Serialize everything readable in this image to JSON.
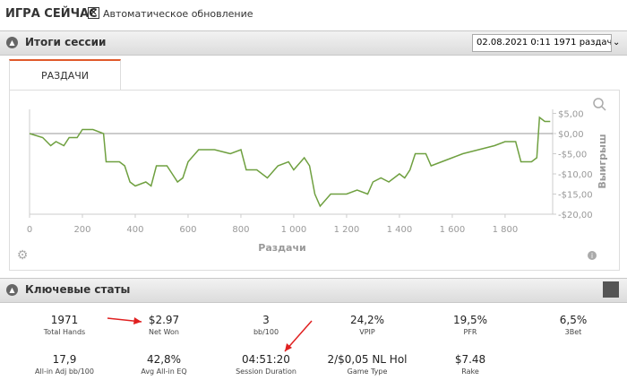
{
  "header": {
    "title": "ИГРА СЕЙЧАС",
    "auto_update": "Автоматическое обновление"
  },
  "session": {
    "title": "Итоги сессии",
    "dropdown": "02.08.2021 0:11 1971 раздач)",
    "tab": "РАЗДАЧИ"
  },
  "chart_data": {
    "type": "line",
    "x_label": "Раздачи",
    "y_label": "Выигрыш",
    "color": "#6fa040",
    "x": [
      0,
      50,
      80,
      100,
      130,
      150,
      180,
      200,
      240,
      280,
      290,
      340,
      360,
      380,
      400,
      440,
      460,
      480,
      520,
      540,
      560,
      580,
      600,
      640,
      700,
      760,
      800,
      820,
      860,
      900,
      940,
      980,
      1000,
      1040,
      1060,
      1080,
      1100,
      1140,
      1200,
      1240,
      1280,
      1300,
      1330,
      1360,
      1400,
      1420,
      1440,
      1460,
      1500,
      1520,
      1560,
      1600,
      1640,
      1700,
      1760,
      1800,
      1840,
      1860,
      1900,
      1920,
      1930,
      1950,
      1971
    ],
    "values": [
      0,
      -1,
      -3,
      -2,
      -3,
      -1,
      -1,
      1,
      1,
      0,
      -7,
      -7,
      -8,
      -12,
      -13,
      -12,
      -13,
      -8,
      -8,
      -10,
      -12,
      -11,
      -7,
      -4,
      -4,
      -5,
      -4,
      -9,
      -9,
      -11,
      -8,
      -7,
      -9,
      -6,
      -8,
      -15,
      -18,
      -15,
      -15,
      -14,
      -15,
      -12,
      -11,
      -12,
      -10,
      -11,
      -9,
      -5,
      -5,
      -8,
      -7,
      -6,
      -5,
      -4,
      -3,
      -2,
      -2,
      -7,
      -7,
      -6,
      4,
      3,
      3
    ],
    "xlim": [
      0,
      1980
    ],
    "ylim": [
      -20,
      6
    ],
    "xticks": [
      0,
      200,
      400,
      600,
      800,
      {
        "value": 1000,
        "label": "1 000"
      },
      {
        "value": 1200,
        "label": "1 200"
      },
      {
        "value": 1400,
        "label": "1 400"
      },
      {
        "value": 1600,
        "label": "1 600"
      },
      {
        "value": 1800,
        "label": "1 800"
      }
    ],
    "yticks": [
      {
        "value": 5,
        "label": "$5,00"
      },
      {
        "value": 0,
        "label": "$0,00"
      },
      {
        "value": -5,
        "label": "-$5,00"
      },
      {
        "value": -10,
        "label": "-$10,00"
      },
      {
        "value": -15,
        "label": "-$15,00"
      },
      {
        "value": -20,
        "label": "-$20,00"
      }
    ]
  },
  "stats": {
    "title": "Ключевые статы",
    "items": [
      {
        "value": "1971",
        "label": "Total Hands"
      },
      {
        "value": "$2.97",
        "label": "Net Won"
      },
      {
        "value": "3",
        "label": "bb/100"
      },
      {
        "value": "24,2%",
        "label": "VPIP"
      },
      {
        "value": "19,5%",
        "label": "PFR"
      },
      {
        "value": "6,5%",
        "label": "3Bet"
      },
      {
        "value": "17,9",
        "label": "All-in Adj bb/100"
      },
      {
        "value": "42,8%",
        "label": "Avg All-in EQ"
      },
      {
        "value": "04:51:20",
        "label": "Session Duration"
      },
      {
        "value": "2/$0,05 NL Hol",
        "label": "Game Type"
      },
      {
        "value": "$7.48",
        "label": "Rake"
      }
    ]
  }
}
